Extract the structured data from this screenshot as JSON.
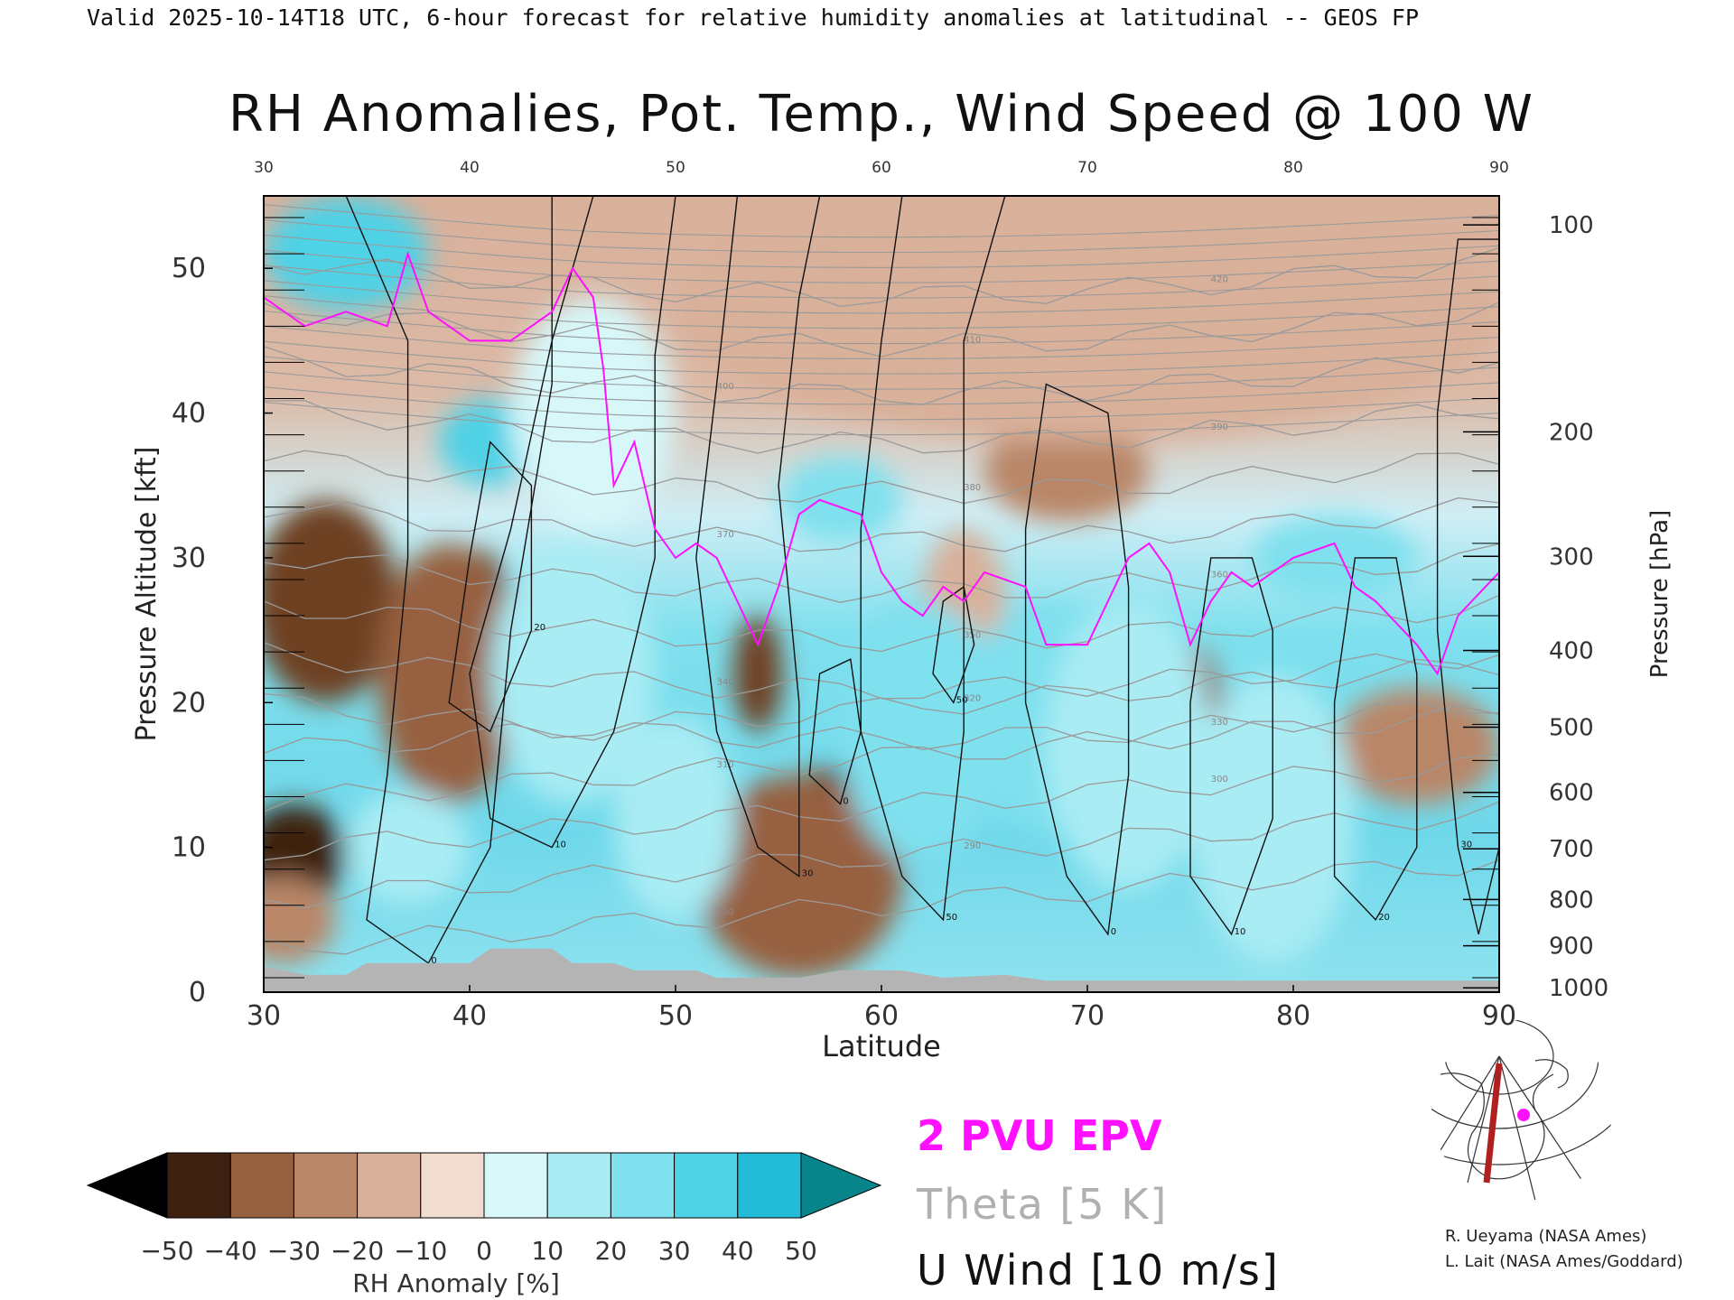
{
  "header": "Valid 2025-10-14T18 UTC, 6-hour forecast for relative humidity anomalies at latitudinal -- GEOS FP",
  "chart_data": {
    "type": "heatmap",
    "title": "RH Anomalies, Pot. Temp., Wind Speed @ 100 W",
    "xlabel": "Latitude",
    "ylabel_left": "Pressure Altitude [kft]",
    "ylabel_right": "Pressure [hPa]",
    "xlim": [
      30,
      90
    ],
    "ylim_kft": [
      0,
      55
    ],
    "x_ticks": [
      "30",
      "40",
      "50",
      "60",
      "70",
      "80",
      "90"
    ],
    "x_ticks_top": [
      "30",
      "40",
      "50",
      "60",
      "70",
      "80",
      "90"
    ],
    "y_ticks_left": [
      {
        "label": "0",
        "kft": 0
      },
      {
        "label": "10",
        "kft": 10
      },
      {
        "label": "20",
        "kft": 20
      },
      {
        "label": "30",
        "kft": 30
      },
      {
        "label": "40",
        "kft": 40
      },
      {
        "label": "50",
        "kft": 50
      }
    ],
    "y_ticks_right": [
      {
        "label": "100",
        "kft": 53.0
      },
      {
        "label": "200",
        "kft": 38.7
      },
      {
        "label": "300",
        "kft": 30.1
      },
      {
        "label": "400",
        "kft": 23.6
      },
      {
        "label": "500",
        "kft": 18.3
      },
      {
        "label": "600",
        "kft": 13.8
      },
      {
        "label": "700",
        "kft": 9.9
      },
      {
        "label": "800",
        "kft": 6.4
      },
      {
        "label": "900",
        "kft": 3.2
      },
      {
        "label": "1000",
        "kft": 0.3
      }
    ],
    "rh_regions": [
      {
        "lat": 33,
        "kft": 27,
        "rx": 3.5,
        "ry": 7,
        "value": -38
      },
      {
        "lat": 31.5,
        "kft": 9.5,
        "rx": 2.5,
        "ry": 3.5,
        "value": -50
      },
      {
        "lat": 40.5,
        "kft": 24,
        "rx": 1.8,
        "ry": 6.5,
        "value": -50
      },
      {
        "lat": 39,
        "kft": 22,
        "rx": 3.5,
        "ry": 9,
        "value": -30
      },
      {
        "lat": 57.5,
        "kft": 10,
        "rx": 3,
        "ry": 5.5,
        "value": -50
      },
      {
        "lat": 56,
        "kft": 8,
        "rx": 5,
        "ry": 7,
        "value": -32
      },
      {
        "lat": 54,
        "kft": 22,
        "rx": 1.2,
        "ry": 4,
        "value": -45
      },
      {
        "lat": 75,
        "kft": 17,
        "rx": 1.8,
        "ry": 7,
        "value": -35
      },
      {
        "lat": 86,
        "kft": 17,
        "rx": 4,
        "ry": 4,
        "value": -25
      },
      {
        "lat": 64,
        "kft": 27,
        "rx": 2,
        "ry": 5,
        "value": -15
      },
      {
        "lat": 69,
        "kft": 36,
        "rx": 4,
        "ry": 3.5,
        "value": -20
      },
      {
        "lat": 70,
        "kft": 47,
        "rx": 20,
        "ry": 9,
        "value": -12
      },
      {
        "lat": 31,
        "kft": 5,
        "rx": 2.5,
        "ry": 3,
        "value": -20
      },
      {
        "lat": 34,
        "kft": 51,
        "rx": 4,
        "ry": 4,
        "value": 42
      },
      {
        "lat": 41,
        "kft": 38,
        "rx": 2.5,
        "ry": 3,
        "value": 40
      },
      {
        "lat": 45,
        "kft": 22,
        "rx": 4,
        "ry": 9,
        "value": 18
      },
      {
        "lat": 46,
        "kft": 40,
        "rx": 4,
        "ry": 8,
        "value": 12
      },
      {
        "lat": 50,
        "kft": 12,
        "rx": 3,
        "ry": 7,
        "value": 15
      },
      {
        "lat": 58,
        "kft": 34,
        "rx": 3,
        "ry": 3,
        "value": 30
      },
      {
        "lat": 62,
        "kft": 18,
        "rx": 4,
        "ry": 9,
        "value": 25
      },
      {
        "lat": 68,
        "kft": 19,
        "rx": 4,
        "ry": 8,
        "value": 28
      },
      {
        "lat": 72,
        "kft": 17,
        "rx": 4,
        "ry": 10,
        "value": 22
      },
      {
        "lat": 79,
        "kft": 12,
        "rx": 4,
        "ry": 10,
        "value": 20
      },
      {
        "lat": 82,
        "kft": 30,
        "rx": 4,
        "ry": 3,
        "value": 30
      },
      {
        "lat": 37,
        "kft": 10,
        "rx": 3,
        "ry": 4,
        "value": 20
      }
    ],
    "epv_2pvu_contour": [
      [
        30,
        48
      ],
      [
        32,
        46
      ],
      [
        34,
        47
      ],
      [
        36,
        46
      ],
      [
        37,
        51
      ],
      [
        38,
        47
      ],
      [
        40,
        45
      ],
      [
        42,
        45
      ],
      [
        44,
        47
      ],
      [
        45,
        50
      ],
      [
        46,
        48
      ],
      [
        46.5,
        43
      ],
      [
        47,
        35
      ],
      [
        48,
        38
      ],
      [
        49,
        32
      ],
      [
        50,
        30
      ],
      [
        51,
        31
      ],
      [
        52,
        30
      ],
      [
        53,
        27
      ],
      [
        54,
        24
      ],
      [
        55,
        28
      ],
      [
        56,
        33
      ],
      [
        57,
        34
      ],
      [
        59,
        33
      ],
      [
        60,
        29
      ],
      [
        61,
        27
      ],
      [
        62,
        26
      ],
      [
        63,
        28
      ],
      [
        64,
        27
      ],
      [
        65,
        29
      ],
      [
        67,
        28
      ],
      [
        68,
        24
      ],
      [
        69,
        24
      ],
      [
        70,
        24
      ],
      [
        71,
        27
      ],
      [
        72,
        30
      ],
      [
        73,
        31
      ],
      [
        74,
        29
      ],
      [
        75,
        24
      ],
      [
        76,
        27
      ],
      [
        77,
        29
      ],
      [
        78,
        28
      ],
      [
        80,
        30
      ],
      [
        82,
        31
      ],
      [
        83,
        28
      ],
      [
        84,
        27
      ],
      [
        86,
        24
      ],
      [
        87,
        22
      ],
      [
        88,
        26
      ],
      [
        90,
        29
      ]
    ],
    "theta_levels_K": [
      "280",
      "290",
      "300",
      "310",
      "320",
      "330",
      "340",
      "350",
      "360",
      "370",
      "380",
      "390",
      "400",
      "410",
      "420"
    ],
    "u_wind_contours_10ms": [
      "0",
      "10",
      "20",
      "30",
      "50"
    ],
    "colorbar": {
      "label": "RH Anomaly [%]",
      "ticks": [
        "−50",
        "−40",
        "−30",
        "−20",
        "−10",
        "0",
        "10",
        "20",
        "30",
        "40",
        "50"
      ],
      "colors": [
        "#000000",
        "#3d2010",
        "#6e3f24",
        "#97603f",
        "#b98667",
        "#d9b09a",
        "#f1dcd0",
        "#d7f7f9",
        "#a9ecf4",
        "#7fe0ee",
        "#4fd1e6",
        "#23bcd8",
        "#0e93b0",
        "#08858a"
      ]
    },
    "legend": [
      {
        "label": "2 PVU EPV",
        "color": "#ff10ff"
      },
      {
        "label": "Theta [5 K]",
        "color": "#b0b0b0"
      },
      {
        "label": "U Wind [10 m/s]",
        "color": "#000000"
      }
    ]
  },
  "credits": [
    "R. Ueyama (NASA Ames)",
    "L. Lait (NASA Ames/Goddard)"
  ]
}
